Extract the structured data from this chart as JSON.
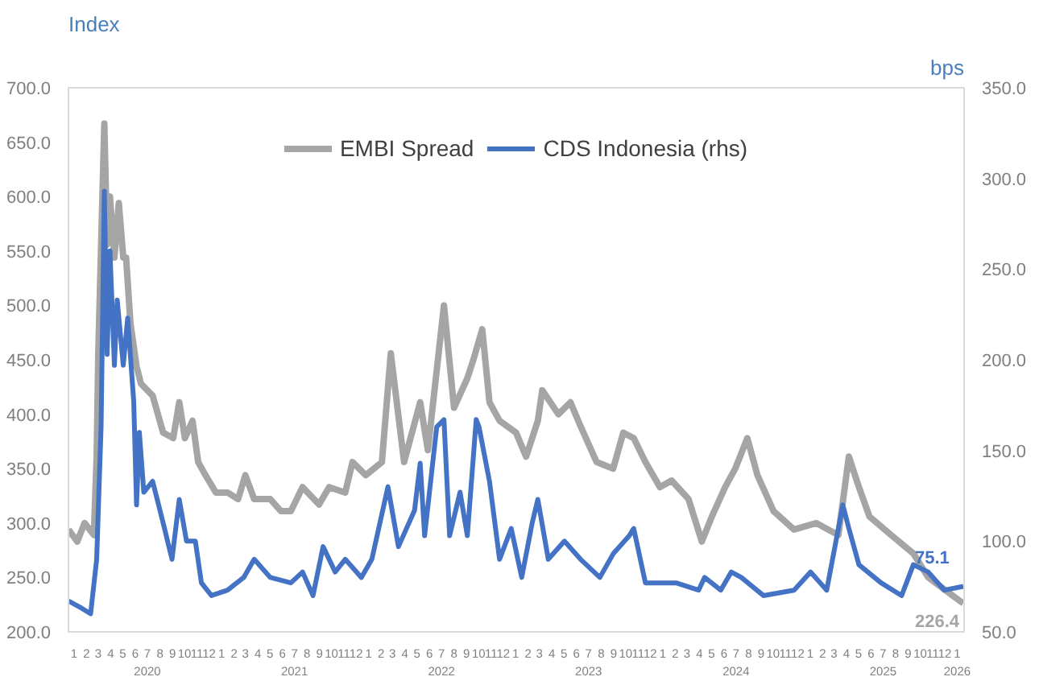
{
  "chart_data": {
    "type": "line",
    "ylabel": "Index",
    "y2label": "bps",
    "legend": "top",
    "grid": false,
    "line_style": "solid",
    "marker": "none",
    "xlim": [
      "2020-01-01",
      "2026-02-01"
    ],
    "ylim": [
      200,
      700
    ],
    "yticks": [
      {
        "value": 200,
        "label": "200.0"
      },
      {
        "value": 250,
        "label": "250.0"
      },
      {
        "value": 300,
        "label": "300.0"
      },
      {
        "value": 350,
        "label": "350.0"
      },
      {
        "value": 400,
        "label": "400.0"
      },
      {
        "value": 450,
        "label": "450.0"
      },
      {
        "value": 500,
        "label": "500.0"
      },
      {
        "value": 550,
        "label": "550.0"
      },
      {
        "value": 600,
        "label": "600.0"
      },
      {
        "value": 650,
        "label": "650.0"
      },
      {
        "value": 700,
        "label": "700.0"
      }
    ],
    "y2lim": [
      50,
      350
    ],
    "y2ticks": [
      {
        "value": 50,
        "label": "50.0"
      },
      {
        "value": 100,
        "label": "100.0"
      },
      {
        "value": 150,
        "label": "150.0"
      },
      {
        "value": 200,
        "label": "200.0"
      },
      {
        "value": 250,
        "label": "250.0"
      },
      {
        "value": 300,
        "label": "300.0"
      },
      {
        "value": 350,
        "label": "350.0"
      }
    ],
    "xticks": [
      {
        "value": "2020-01-15",
        "label": "1"
      },
      {
        "value": "2020-02-15",
        "label": "2"
      },
      {
        "value": "2020-03-15",
        "label": "3"
      },
      {
        "value": "2020-04-15",
        "label": "4"
      },
      {
        "value": "2020-05-15",
        "label": "5"
      },
      {
        "value": "2020-06-15",
        "label": "6"
      },
      {
        "value": "2020-07-15",
        "label": "7\n2020"
      },
      {
        "value": "2020-08-15",
        "label": "8"
      },
      {
        "value": "2020-09-15",
        "label": "9"
      },
      {
        "value": "2020-10-15",
        "label": "10"
      },
      {
        "value": "2020-11-15",
        "label": "11"
      },
      {
        "value": "2020-12-15",
        "label": "12"
      },
      {
        "value": "2021-01-15",
        "label": "1"
      },
      {
        "value": "2021-02-15",
        "label": "2"
      },
      {
        "value": "2021-03-15",
        "label": "3"
      },
      {
        "value": "2021-04-15",
        "label": "4"
      },
      {
        "value": "2021-05-15",
        "label": "5"
      },
      {
        "value": "2021-06-15",
        "label": "6"
      },
      {
        "value": "2021-07-15",
        "label": "7\n2021"
      },
      {
        "value": "2021-08-15",
        "label": "8"
      },
      {
        "value": "2021-09-15",
        "label": "9"
      },
      {
        "value": "2021-10-15",
        "label": "10"
      },
      {
        "value": "2021-11-15",
        "label": "11"
      },
      {
        "value": "2021-12-15",
        "label": "12"
      },
      {
        "value": "2022-01-15",
        "label": "1"
      },
      {
        "value": "2022-02-15",
        "label": "2"
      },
      {
        "value": "2022-03-15",
        "label": "3"
      },
      {
        "value": "2022-04-15",
        "label": "4"
      },
      {
        "value": "2022-05-15",
        "label": "5"
      },
      {
        "value": "2022-06-15",
        "label": "6"
      },
      {
        "value": "2022-07-15",
        "label": "7\n2022"
      },
      {
        "value": "2022-08-15",
        "label": "8"
      },
      {
        "value": "2022-09-15",
        "label": "9"
      },
      {
        "value": "2022-10-15",
        "label": "10"
      },
      {
        "value": "2022-11-15",
        "label": "11"
      },
      {
        "value": "2022-12-15",
        "label": "12"
      },
      {
        "value": "2023-01-15",
        "label": "1"
      },
      {
        "value": "2023-02-15",
        "label": "2"
      },
      {
        "value": "2023-03-15",
        "label": "3"
      },
      {
        "value": "2023-04-15",
        "label": "4"
      },
      {
        "value": "2023-05-15",
        "label": "5"
      },
      {
        "value": "2023-06-15",
        "label": "6"
      },
      {
        "value": "2023-07-15",
        "label": "7\n2023"
      },
      {
        "value": "2023-08-15",
        "label": "8"
      },
      {
        "value": "2023-09-15",
        "label": "9"
      },
      {
        "value": "2023-10-15",
        "label": "10"
      },
      {
        "value": "2023-11-15",
        "label": "11"
      },
      {
        "value": "2023-12-15",
        "label": "12"
      },
      {
        "value": "2024-01-15",
        "label": "1"
      },
      {
        "value": "2024-02-15",
        "label": "2"
      },
      {
        "value": "2024-03-15",
        "label": "3"
      },
      {
        "value": "2024-04-15",
        "label": "4"
      },
      {
        "value": "2024-05-15",
        "label": "5"
      },
      {
        "value": "2024-06-15",
        "label": "6"
      },
      {
        "value": "2024-07-15",
        "label": "7\n2024"
      },
      {
        "value": "2024-08-15",
        "label": "8"
      },
      {
        "value": "2024-09-15",
        "label": "9"
      },
      {
        "value": "2024-10-15",
        "label": "10"
      },
      {
        "value": "2024-11-15",
        "label": "11"
      },
      {
        "value": "2024-12-15",
        "label": "12"
      },
      {
        "value": "2025-01-15",
        "label": "1"
      },
      {
        "value": "2025-02-15",
        "label": "2"
      },
      {
        "value": "2025-03-15",
        "label": "3"
      },
      {
        "value": "2025-04-15",
        "label": "4"
      },
      {
        "value": "2025-05-15",
        "label": "5"
      },
      {
        "value": "2025-06-15",
        "label": "6"
      },
      {
        "value": "2025-07-15",
        "label": "7\n2025"
      },
      {
        "value": "2025-08-15",
        "label": "8"
      },
      {
        "value": "2025-09-15",
        "label": "9"
      },
      {
        "value": "2025-10-15",
        "label": "10"
      },
      {
        "value": "2025-11-15",
        "label": "11"
      },
      {
        "value": "2025-12-15",
        "label": "12"
      },
      {
        "value": "2026-01-15",
        "label": "1\n2026"
      }
    ],
    "series": [
      {
        "name": "EMBI Spread",
        "color": "#a5a5a5",
        "x": [
          "2020-01-01",
          "2020-01-23",
          "2020-02-10",
          "2020-03-04",
          "2020-03-11",
          "2020-03-15",
          "2020-03-30",
          "2020-04-06",
          "2020-04-13",
          "2020-04-24",
          "2020-05-05",
          "2020-05-16",
          "2020-05-23",
          "2020-06-03",
          "2020-06-18",
          "2020-06-29",
          "2020-07-28",
          "2020-08-23",
          "2020-09-17",
          "2020-10-02",
          "2020-10-16",
          "2020-11-04",
          "2020-11-18",
          "2020-12-06",
          "2021-01-01",
          "2021-01-30",
          "2021-02-25",
          "2021-03-15",
          "2021-04-06",
          "2021-05-16",
          "2021-06-11",
          "2021-07-06",
          "2021-08-04",
          "2021-09-14",
          "2021-10-09",
          "2021-11-18",
          "2021-12-06",
          "2022-01-08",
          "2022-02-17",
          "2022-03-11",
          "2022-04-13",
          "2022-05-23",
          "2022-06-11",
          "2022-07-21",
          "2022-08-15",
          "2022-09-17",
          "2022-10-02",
          "2022-10-24",
          "2022-11-11",
          "2022-12-06",
          "2023-01-16",
          "2023-02-10",
          "2023-03-11",
          "2023-03-22",
          "2023-05-01",
          "2023-05-31",
          "2023-06-25",
          "2023-08-04",
          "2023-09-14",
          "2023-10-09",
          "2023-11-04",
          "2023-12-03",
          "2024-01-08",
          "2024-02-06",
          "2024-03-19",
          "2024-04-21",
          "2024-05-16",
          "2024-06-18",
          "2024-07-13",
          "2024-08-12",
          "2024-09-06",
          "2024-10-16",
          "2024-12-06",
          "2025-01-30",
          "2025-03-26",
          "2025-04-21",
          "2025-05-16",
          "2025-06-11",
          "2025-08-04",
          "2025-09-28",
          "2025-11-04",
          "2025-12-14",
          "2026-01-23",
          "2026-01-30"
        ],
        "values": [
          294,
          283,
          300,
          289,
          361,
          456,
          667,
          556,
          600,
          544,
          594,
          544,
          544,
          483,
          444,
          428,
          417,
          383,
          378,
          411,
          378,
          394,
          356,
          344,
          328,
          328,
          322,
          344,
          322,
          322,
          311,
          311,
          333,
          317,
          333,
          328,
          356,
          344,
          356,
          456,
          356,
          411,
          367,
          500,
          406,
          433,
          450,
          478,
          411,
          394,
          383,
          361,
          394,
          422,
          400,
          411,
          389,
          356,
          350,
          383,
          378,
          356,
          333,
          339,
          322,
          283,
          306,
          333,
          350,
          378,
          344,
          311,
          294,
          300,
          289,
          361,
          333,
          306,
          289,
          272,
          250,
          239,
          228,
          226.4
        ],
        "value_labels": [
          null,
          null,
          null,
          null,
          null,
          null,
          null,
          null,
          null,
          null,
          null,
          null,
          null,
          null,
          null,
          null,
          null,
          null,
          null,
          null,
          null,
          null,
          null,
          null,
          null,
          null,
          null,
          null,
          null,
          null,
          null,
          null,
          null,
          null,
          null,
          null,
          null,
          null,
          null,
          null,
          null,
          null,
          null,
          null,
          null,
          null,
          null,
          null,
          null,
          null,
          null,
          null,
          null,
          null,
          null,
          null,
          null,
          null,
          null,
          null,
          null,
          null,
          null,
          null,
          null,
          null,
          null,
          null,
          null,
          null,
          null,
          null,
          null,
          null,
          null,
          null,
          null,
          null,
          null,
          null,
          null,
          null,
          null,
          "226.4"
        ]
      },
      {
        "name": "CDS Indonesia (rhs)",
        "color": "#4472c4",
        "axis": "y2",
        "x": [
          "2020-01-01",
          "2020-02-03",
          "2020-02-25",
          "2020-03-11",
          "2020-03-22",
          "2020-03-30",
          "2020-04-06",
          "2020-04-13",
          "2020-04-24",
          "2020-05-01",
          "2020-05-16",
          "2020-05-27",
          "2020-06-11",
          "2020-06-18",
          "2020-06-25",
          "2020-07-06",
          "2020-07-28",
          "2020-08-23",
          "2020-09-14",
          "2020-10-02",
          "2020-10-20",
          "2020-11-11",
          "2020-11-26",
          "2020-12-21",
          "2021-01-30",
          "2021-03-11",
          "2021-04-06",
          "2021-05-16",
          "2021-07-06",
          "2021-08-04",
          "2021-08-30",
          "2021-09-24",
          "2021-10-24",
          "2021-11-18",
          "2021-12-28",
          "2022-01-23",
          "2022-03-04",
          "2022-03-30",
          "2022-05-09",
          "2022-05-23",
          "2022-06-03",
          "2022-07-03",
          "2022-07-21",
          "2022-08-04",
          "2022-08-30",
          "2022-09-17",
          "2022-10-09",
          "2022-10-16",
          "2022-11-11",
          "2022-12-06",
          "2023-01-04",
          "2023-01-30",
          "2023-02-25",
          "2023-03-11",
          "2023-04-06",
          "2023-05-16",
          "2023-06-25",
          "2023-08-12",
          "2023-09-14",
          "2023-10-24",
          "2023-11-04",
          "2023-12-03",
          "2024-02-17",
          "2024-04-13",
          "2024-04-28",
          "2024-06-07",
          "2024-07-03",
          "2024-07-28",
          "2024-09-21",
          "2024-12-06",
          "2025-01-16",
          "2025-02-25",
          "2025-04-06",
          "2025-04-21",
          "2025-05-16",
          "2025-07-10",
          "2025-08-30",
          "2025-09-28",
          "2025-11-04",
          "2025-12-14",
          "2026-01-30"
        ],
        "values": [
          67,
          63,
          60,
          90,
          163,
          293,
          203,
          260,
          197,
          233,
          197,
          223,
          177,
          120,
          160,
          127,
          133,
          110,
          90,
          123,
          100,
          100,
          77,
          70,
          73,
          80,
          90,
          80,
          77,
          83,
          70,
          97,
          83,
          90,
          80,
          90,
          130,
          97,
          117,
          143,
          103,
          163,
          167,
          103,
          127,
          103,
          167,
          163,
          133,
          90,
          107,
          80,
          110,
          123,
          90,
          100,
          90,
          80,
          93,
          103,
          107,
          77,
          77,
          73,
          80,
          73,
          83,
          80,
          70,
          73,
          83,
          73,
          120,
          107,
          87,
          77,
          70,
          87,
          83,
          73,
          75.1
        ],
        "value_labels": [
          null,
          null,
          null,
          null,
          null,
          null,
          null,
          null,
          null,
          null,
          null,
          null,
          null,
          null,
          null,
          null,
          null,
          null,
          null,
          null,
          null,
          null,
          null,
          null,
          null,
          null,
          null,
          null,
          null,
          null,
          null,
          null,
          null,
          null,
          null,
          null,
          null,
          null,
          null,
          null,
          null,
          null,
          null,
          null,
          null,
          null,
          null,
          null,
          null,
          null,
          null,
          null,
          null,
          null,
          null,
          null,
          null,
          null,
          null,
          null,
          null,
          null,
          null,
          null,
          null,
          null,
          null,
          null,
          null,
          null,
          null,
          null,
          null,
          null,
          null,
          null,
          null,
          null,
          null,
          null,
          "75.1"
        ]
      }
    ]
  }
}
